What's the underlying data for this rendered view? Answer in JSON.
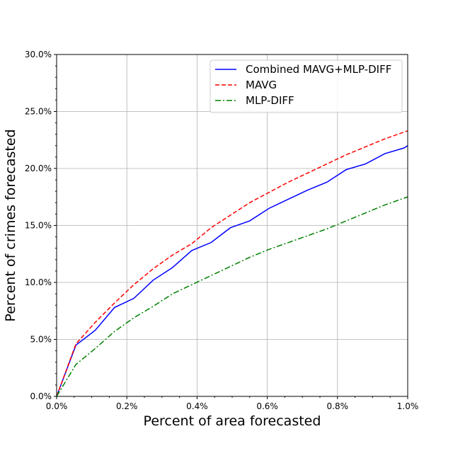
{
  "chart_data": {
    "type": "line",
    "title": "",
    "xlabel": "Percent of area forecasted",
    "ylabel": "Percent of crimes forecasted",
    "xlim": [
      0,
      1.0
    ],
    "ylim": [
      0,
      30.0
    ],
    "grid": true,
    "legend_position": "top-right",
    "x_ticks": [
      0,
      0.2,
      0.4,
      0.6,
      0.8,
      1.0
    ],
    "x_tick_labels": [
      "0.0%",
      "0.2%",
      "0.4%",
      "0.6%",
      "0.8%",
      "1.0%"
    ],
    "y_ticks": [
      0,
      5,
      10,
      15,
      20,
      25,
      30
    ],
    "y_tick_labels": [
      "0.0%",
      "5.0%",
      "10.0%",
      "15.0%",
      "20.0%",
      "25.0%",
      "30.0%"
    ],
    "series": [
      {
        "name": "Combined MAVG+MLP-DIFF",
        "color": "#0000ff",
        "dash": "solid",
        "x": [
          0,
          0.055,
          0.11,
          0.165,
          0.22,
          0.275,
          0.33,
          0.385,
          0.44,
          0.495,
          0.55,
          0.605,
          0.66,
          0.715,
          0.77,
          0.825,
          0.88,
          0.935,
          0.99,
          1.0
        ],
        "y": [
          0,
          4.5,
          5.8,
          7.8,
          8.6,
          10.2,
          11.3,
          12.8,
          13.5,
          14.8,
          15.4,
          16.5,
          17.3,
          18.1,
          18.8,
          19.9,
          20.4,
          21.3,
          21.8,
          22.0
        ]
      },
      {
        "name": "MAVG",
        "color": "#ff0000",
        "dash": "dashed",
        "x": [
          0,
          0.055,
          0.11,
          0.165,
          0.22,
          0.275,
          0.33,
          0.385,
          0.44,
          0.495,
          0.55,
          0.605,
          0.66,
          0.715,
          0.77,
          0.825,
          0.88,
          0.935,
          0.99,
          1.0
        ],
        "y": [
          0,
          4.6,
          6.5,
          8.2,
          9.8,
          11.2,
          12.4,
          13.4,
          14.8,
          15.9,
          17.0,
          17.9,
          18.8,
          19.6,
          20.4,
          21.2,
          21.9,
          22.6,
          23.2,
          23.3
        ]
      },
      {
        "name": "MLP-DIFF",
        "color": "#008000",
        "dash": "dashdot",
        "x": [
          0,
          0.055,
          0.11,
          0.165,
          0.22,
          0.275,
          0.33,
          0.385,
          0.44,
          0.495,
          0.55,
          0.605,
          0.66,
          0.715,
          0.77,
          0.825,
          0.88,
          0.935,
          0.99,
          1.0
        ],
        "y": [
          0,
          2.8,
          4.2,
          5.7,
          6.9,
          7.9,
          9.0,
          9.8,
          10.6,
          11.4,
          12.2,
          12.9,
          13.5,
          14.1,
          14.7,
          15.4,
          16.1,
          16.8,
          17.4,
          17.5
        ]
      }
    ]
  }
}
